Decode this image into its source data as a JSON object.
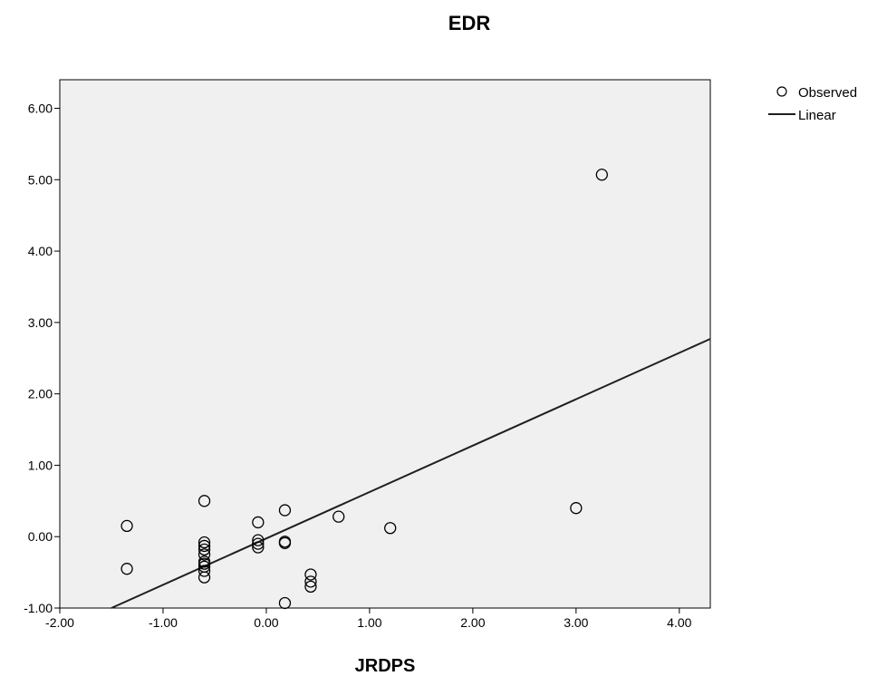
{
  "chart_data": {
    "type": "scatter",
    "title": "EDR",
    "xlabel": "JRDPS",
    "ylabel": "",
    "xlim": [
      -2.0,
      4.3
    ],
    "ylim": [
      -1.0,
      6.4
    ],
    "xticks": [
      -2.0,
      -1.0,
      0.0,
      1.0,
      2.0,
      3.0,
      4.0
    ],
    "xtick_labels": [
      "-2.00",
      "-1.00",
      "0.00",
      "1.00",
      "2.00",
      "3.00",
      "4.00"
    ],
    "yticks": [
      -1.0,
      0.0,
      1.0,
      2.0,
      3.0,
      4.0,
      5.0,
      6.0
    ],
    "ytick_labels": [
      "-1.00",
      "0.00",
      "1.00",
      "2.00",
      "3.00",
      "4.00",
      "5.00",
      "6.00"
    ],
    "grid": false,
    "legend_position": "top-right-outside",
    "colors": {
      "plot_background": "#f0f0f0",
      "axis": "#000000",
      "marker_stroke": "#000000",
      "line": "#1f1f1f"
    },
    "series": [
      {
        "name": "Observed",
        "kind": "scatter",
        "points": [
          {
            "x": -1.35,
            "y": 0.15
          },
          {
            "x": -1.35,
            "y": -0.45
          },
          {
            "x": -0.6,
            "y": 0.5
          },
          {
            "x": -0.6,
            "y": -0.08
          },
          {
            "x": -0.6,
            "y": -0.13
          },
          {
            "x": -0.6,
            "y": -0.18
          },
          {
            "x": -0.6,
            "y": -0.25
          },
          {
            "x": -0.6,
            "y": -0.35
          },
          {
            "x": -0.6,
            "y": -0.38
          },
          {
            "x": -0.6,
            "y": -0.42
          },
          {
            "x": -0.6,
            "y": -0.48
          },
          {
            "x": -0.6,
            "y": -0.57
          },
          {
            "x": -0.08,
            "y": 0.2
          },
          {
            "x": -0.08,
            "y": -0.05
          },
          {
            "x": -0.08,
            "y": -0.1
          },
          {
            "x": -0.08,
            "y": -0.15
          },
          {
            "x": 0.18,
            "y": 0.37
          },
          {
            "x": 0.18,
            "y": -0.07
          },
          {
            "x": 0.18,
            "y": -0.09
          },
          {
            "x": 0.18,
            "y": -0.93
          },
          {
            "x": 0.43,
            "y": -0.53
          },
          {
            "x": 0.43,
            "y": -0.63
          },
          {
            "x": 0.43,
            "y": -0.7
          },
          {
            "x": 0.7,
            "y": 0.28
          },
          {
            "x": 1.2,
            "y": 0.12
          },
          {
            "x": 3.0,
            "y": 0.4
          },
          {
            "x": 3.25,
            "y": 5.07
          }
        ]
      },
      {
        "name": "Linear",
        "kind": "line",
        "points": [
          {
            "x": -1.5,
            "y": -1.0
          },
          {
            "x": 4.3,
            "y": 2.77
          }
        ]
      }
    ]
  }
}
